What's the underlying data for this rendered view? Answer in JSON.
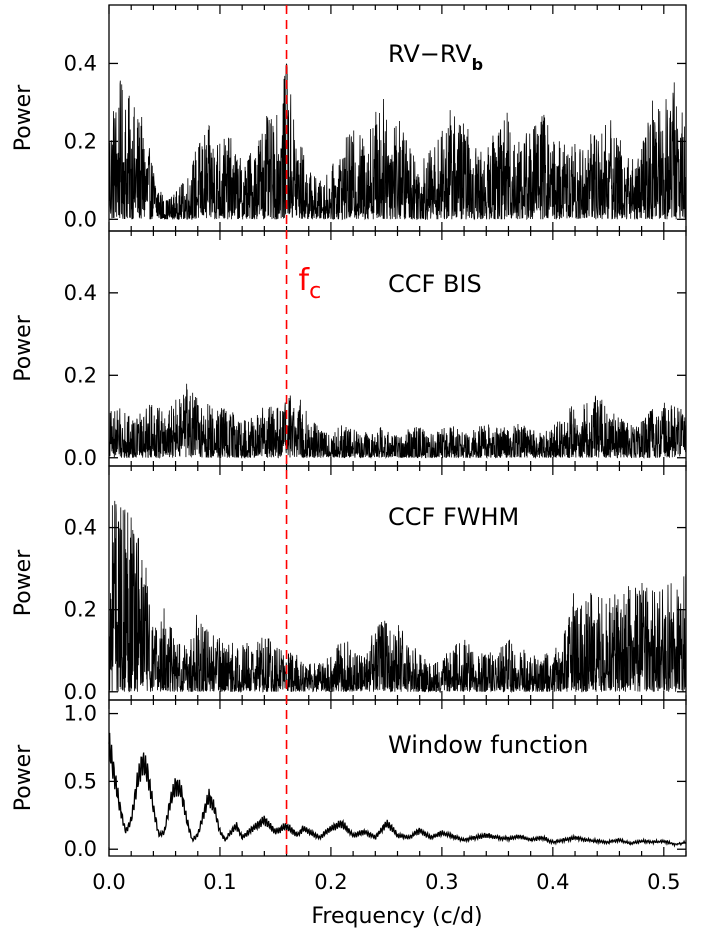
{
  "chart_data": {
    "type": "line",
    "xlabel": "Frequency (c/d)",
    "xlim": [
      0.0,
      0.52
    ],
    "x_ticks": [
      "0.0",
      "0.1",
      "0.2",
      "0.3",
      "0.4",
      "0.5"
    ],
    "grid": false,
    "marker": {
      "x": 0.16,
      "color": "#ff0000",
      "style": "dashed",
      "label": "f",
      "label_subscript": "c"
    },
    "panels": [
      {
        "label_main": "RV−RV",
        "label_sub": "b",
        "ylabel": "Power",
        "ylim": [
          -0.03,
          0.55
        ],
        "y_ticks": [
          "0.0",
          "0.2",
          "0.4"
        ],
        "series": {
          "x": [
            0.0,
            0.01,
            0.02,
            0.03,
            0.04,
            0.05,
            0.06,
            0.07,
            0.08,
            0.09,
            0.1,
            0.11,
            0.12,
            0.13,
            0.14,
            0.15,
            0.16,
            0.17,
            0.18,
            0.19,
            0.2,
            0.21,
            0.22,
            0.23,
            0.24,
            0.25,
            0.26,
            0.27,
            0.28,
            0.29,
            0.3,
            0.31,
            0.32,
            0.33,
            0.34,
            0.35,
            0.36,
            0.37,
            0.38,
            0.39,
            0.4,
            0.41,
            0.42,
            0.43,
            0.44,
            0.45,
            0.46,
            0.47,
            0.48,
            0.49,
            0.5,
            0.51,
            0.52
          ],
          "y": [
            0.28,
            0.36,
            0.31,
            0.26,
            0.14,
            0.05,
            0.07,
            0.11,
            0.2,
            0.24,
            0.22,
            0.21,
            0.15,
            0.19,
            0.27,
            0.25,
            0.4,
            0.23,
            0.13,
            0.1,
            0.13,
            0.2,
            0.23,
            0.22,
            0.29,
            0.32,
            0.27,
            0.21,
            0.16,
            0.18,
            0.23,
            0.3,
            0.25,
            0.2,
            0.17,
            0.26,
            0.28,
            0.23,
            0.24,
            0.29,
            0.22,
            0.2,
            0.2,
            0.21,
            0.24,
            0.27,
            0.22,
            0.16,
            0.19,
            0.31,
            0.34,
            0.37,
            0.23
          ]
        }
      },
      {
        "label_main": "CCF BIS",
        "ylabel": "Power",
        "ylim": [
          -0.02,
          0.55
        ],
        "y_ticks": [
          "0.0",
          "0.2",
          "0.4"
        ],
        "series": {
          "x": [
            0.0,
            0.01,
            0.02,
            0.03,
            0.04,
            0.05,
            0.06,
            0.07,
            0.08,
            0.09,
            0.1,
            0.11,
            0.12,
            0.13,
            0.14,
            0.15,
            0.16,
            0.17,
            0.18,
            0.19,
            0.2,
            0.21,
            0.22,
            0.23,
            0.24,
            0.25,
            0.26,
            0.27,
            0.28,
            0.29,
            0.3,
            0.31,
            0.32,
            0.33,
            0.34,
            0.35,
            0.36,
            0.37,
            0.38,
            0.39,
            0.4,
            0.41,
            0.42,
            0.43,
            0.44,
            0.45,
            0.46,
            0.47,
            0.48,
            0.49,
            0.5,
            0.51,
            0.52
          ],
          "y": [
            0.14,
            0.12,
            0.1,
            0.11,
            0.15,
            0.12,
            0.14,
            0.18,
            0.15,
            0.13,
            0.14,
            0.12,
            0.09,
            0.1,
            0.13,
            0.12,
            0.14,
            0.18,
            0.1,
            0.08,
            0.06,
            0.08,
            0.07,
            0.06,
            0.08,
            0.07,
            0.06,
            0.07,
            0.08,
            0.06,
            0.07,
            0.08,
            0.06,
            0.07,
            0.09,
            0.08,
            0.07,
            0.09,
            0.07,
            0.06,
            0.08,
            0.1,
            0.14,
            0.13,
            0.18,
            0.12,
            0.1,
            0.08,
            0.09,
            0.12,
            0.14,
            0.13,
            0.12
          ]
        }
      },
      {
        "label_main": "CCF FWHM",
        "ylabel": "Power",
        "ylim": [
          -0.02,
          0.55
        ],
        "y_ticks": [
          "0.0",
          "0.2",
          "0.4"
        ],
        "series": {
          "x": [
            0.0,
            0.01,
            0.02,
            0.03,
            0.04,
            0.05,
            0.06,
            0.07,
            0.08,
            0.09,
            0.1,
            0.11,
            0.12,
            0.13,
            0.14,
            0.15,
            0.16,
            0.17,
            0.18,
            0.19,
            0.2,
            0.21,
            0.22,
            0.23,
            0.24,
            0.25,
            0.26,
            0.27,
            0.28,
            0.29,
            0.3,
            0.31,
            0.32,
            0.33,
            0.34,
            0.35,
            0.36,
            0.37,
            0.38,
            0.39,
            0.4,
            0.41,
            0.42,
            0.43,
            0.44,
            0.45,
            0.46,
            0.47,
            0.48,
            0.49,
            0.5,
            0.51,
            0.52
          ],
          "y": [
            0.55,
            0.45,
            0.55,
            0.38,
            0.15,
            0.21,
            0.13,
            0.11,
            0.2,
            0.16,
            0.13,
            0.12,
            0.13,
            0.11,
            0.14,
            0.12,
            0.1,
            0.09,
            0.07,
            0.08,
            0.09,
            0.14,
            0.11,
            0.09,
            0.16,
            0.2,
            0.17,
            0.13,
            0.1,
            0.08,
            0.09,
            0.11,
            0.13,
            0.1,
            0.09,
            0.11,
            0.13,
            0.11,
            0.1,
            0.09,
            0.1,
            0.14,
            0.26,
            0.24,
            0.25,
            0.23,
            0.25,
            0.26,
            0.27,
            0.25,
            0.26,
            0.27,
            0.3
          ]
        }
      },
      {
        "label_main": "Window function",
        "ylabel": "Power",
        "ylim": [
          -0.05,
          1.1
        ],
        "y_ticks": [
          "0.0",
          "0.5",
          "1.0"
        ],
        "series": {
          "x": [
            0.0,
            0.005,
            0.01,
            0.015,
            0.02,
            0.025,
            0.03,
            0.035,
            0.04,
            0.045,
            0.05,
            0.055,
            0.06,
            0.065,
            0.07,
            0.075,
            0.08,
            0.085,
            0.09,
            0.095,
            0.1,
            0.105,
            0.11,
            0.115,
            0.12,
            0.13,
            0.14,
            0.145,
            0.15,
            0.16,
            0.17,
            0.175,
            0.18,
            0.19,
            0.2,
            0.21,
            0.22,
            0.23,
            0.24,
            0.25,
            0.255,
            0.26,
            0.27,
            0.28,
            0.29,
            0.3,
            0.31,
            0.32,
            0.33,
            0.34,
            0.35,
            0.36,
            0.37,
            0.38,
            0.39,
            0.4,
            0.41,
            0.42,
            0.43,
            0.44,
            0.45,
            0.46,
            0.47,
            0.48,
            0.49,
            0.5,
            0.51,
            0.52
          ],
          "y": [
            0.9,
            0.62,
            0.35,
            0.15,
            0.25,
            0.55,
            0.75,
            0.65,
            0.35,
            0.12,
            0.15,
            0.4,
            0.55,
            0.5,
            0.25,
            0.08,
            0.12,
            0.3,
            0.45,
            0.35,
            0.15,
            0.08,
            0.15,
            0.2,
            0.1,
            0.18,
            0.25,
            0.2,
            0.15,
            0.2,
            0.12,
            0.18,
            0.15,
            0.1,
            0.18,
            0.22,
            0.12,
            0.15,
            0.1,
            0.22,
            0.18,
            0.12,
            0.1,
            0.16,
            0.1,
            0.14,
            0.11,
            0.08,
            0.1,
            0.12,
            0.1,
            0.09,
            0.11,
            0.08,
            0.1,
            0.06,
            0.08,
            0.1,
            0.08,
            0.07,
            0.06,
            0.08,
            0.05,
            0.07,
            0.06,
            0.07,
            0.04,
            0.06
          ]
        }
      }
    ]
  }
}
